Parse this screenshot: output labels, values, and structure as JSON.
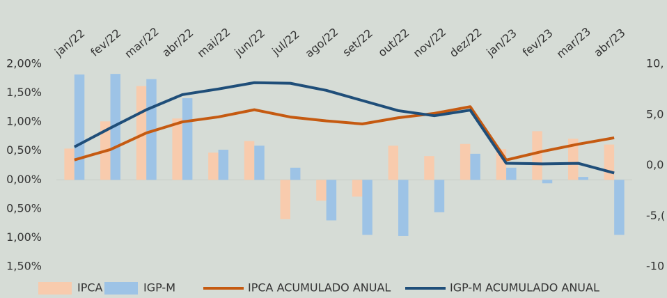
{
  "chart_data": {
    "type": "bar-line",
    "categories": [
      "jan/22",
      "fev/22",
      "mar/22",
      "abr/22",
      "mai/22",
      "jun/22",
      "jul/22",
      "ago/22",
      "set/22",
      "out/22",
      "nov/22",
      "dez/22",
      "jan/23",
      "fev/23",
      "mar/23",
      "abr/23"
    ],
    "series": [
      {
        "name": "IPCA",
        "type": "bar",
        "color": "#f8cbad",
        "values": [
          0.54,
          1.01,
          1.62,
          1.06,
          0.47,
          0.67,
          -0.68,
          -0.36,
          -0.29,
          0.59,
          0.41,
          0.62,
          0.53,
          0.84,
          0.71,
          0.61
        ]
      },
      {
        "name": "IGP-M",
        "type": "bar",
        "color": "#9dc3e6",
        "values": [
          1.82,
          1.83,
          1.74,
          1.41,
          0.52,
          0.59,
          0.21,
          -0.7,
          -0.95,
          -0.97,
          -0.56,
          0.45,
          0.21,
          -0.06,
          0.05,
          -0.95
        ]
      },
      {
        "name": "IPCA ACUMULADO ANUAL",
        "type": "line",
        "axis": "y2",
        "color": "#c55a11",
        "values": [
          0.54,
          1.56,
          3.2,
          4.29,
          4.78,
          5.49,
          4.77,
          4.39,
          4.09,
          4.7,
          5.13,
          5.79,
          0.53,
          1.37,
          2.09,
          2.72
        ]
      },
      {
        "name": "IGP-M ACUMULADO ANUAL",
        "type": "line",
        "axis": "y2",
        "color": "#1f4e79",
        "values": [
          1.82,
          3.69,
          5.49,
          6.98,
          7.54,
          8.16,
          8.1,
          7.4,
          6.4,
          5.4,
          4.9,
          5.45,
          0.21,
          0.15,
          0.2,
          -0.75
        ]
      }
    ],
    "ylim": [
      -1.5,
      2.0
    ],
    "yticks": [
      {
        "value": 2.0,
        "label": "2,00%"
      },
      {
        "value": 1.5,
        "label": "1,50%"
      },
      {
        "value": 1.0,
        "label": "1,00%"
      },
      {
        "value": 0.5,
        "label": "0,50%"
      },
      {
        "value": 0,
        "label": "0,00%"
      },
      {
        "value": -0.5,
        "label": "0,50%"
      },
      {
        "value": -1.0,
        "label": "1,00%"
      },
      {
        "value": -1.5,
        "label": "1,50%"
      }
    ],
    "y2lim": [
      -10,
      10
    ],
    "y2ticks": [
      {
        "value": 10,
        "label": "10,"
      },
      {
        "value": 5,
        "label": "5,0"
      },
      {
        "value": 0,
        "label": "0,0"
      },
      {
        "value": -5,
        "label": "-5,("
      },
      -10
    ]
  }
}
